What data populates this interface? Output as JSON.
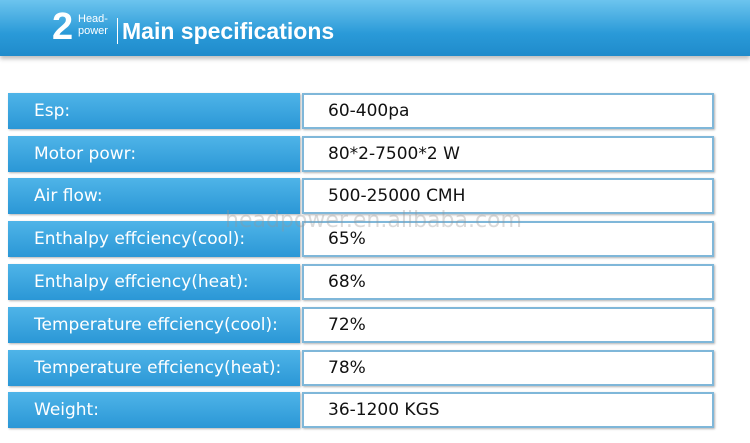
{
  "header": {
    "number": "2",
    "brand_top": "Head-",
    "brand_bottom": "power",
    "title": "Main specifications"
  },
  "watermark": "headpower.en.alibaba.com",
  "table": {
    "rows": [
      [
        "Esp:",
        "60-400pa"
      ],
      [
        "Motor powr:",
        "80*2-7500*2 W"
      ],
      [
        "Air flow:",
        "500-25000 CMH"
      ],
      [
        "Enthalpy effciency(cool):",
        "65%"
      ],
      [
        "Enthalpy effciency(heat):",
        "68%"
      ],
      [
        "Temperature effciency(cool):",
        "72%"
      ],
      [
        "Temperature effciency(heat):",
        "78%"
      ],
      [
        "Weight:",
        "36-1200 KGS"
      ]
    ]
  }
}
